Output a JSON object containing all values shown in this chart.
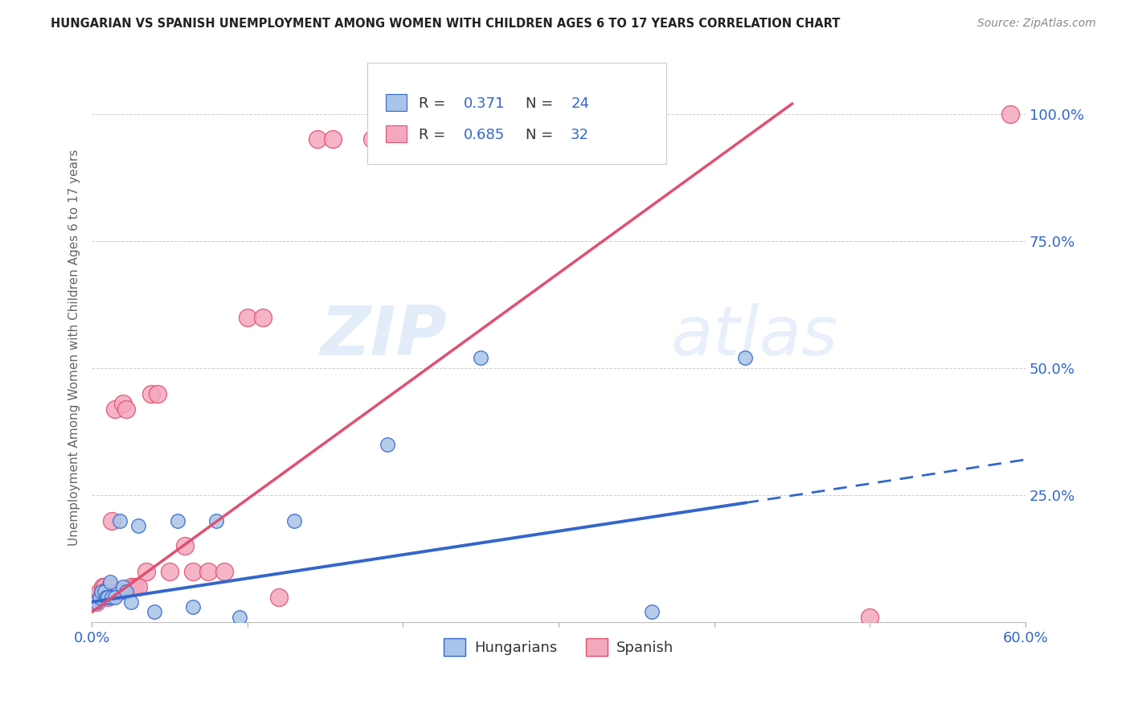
{
  "title": "HUNGARIAN VS SPANISH UNEMPLOYMENT AMONG WOMEN WITH CHILDREN AGES 6 TO 17 YEARS CORRELATION CHART",
  "source": "Source: ZipAtlas.com",
  "ylabel": "Unemployment Among Women with Children Ages 6 to 17 years",
  "xlim": [
    0.0,
    0.6
  ],
  "ylim": [
    0.0,
    1.08
  ],
  "xticks": [
    0.0,
    0.1,
    0.2,
    0.3,
    0.4,
    0.5,
    0.6
  ],
  "xticklabels": [
    "0.0%",
    "",
    "",
    "",
    "",
    "",
    "60.0%"
  ],
  "yticks_right": [
    0.0,
    0.25,
    0.5,
    0.75,
    1.0
  ],
  "yticklabels_right": [
    "",
    "25.0%",
    "50.0%",
    "75.0%",
    "100.0%"
  ],
  "R_hungarian": 0.371,
  "N_hungarian": 24,
  "R_spanish": 0.685,
  "N_spanish": 32,
  "color_hungarian": "#a8c4e8",
  "color_spanish": "#f4a8be",
  "color_hungarian_line": "#3366cc",
  "color_spanish_line": "#e05070",
  "watermark_zip": "ZIP",
  "watermark_atlas": "atlas",
  "hun_line_x0": 0.0,
  "hun_line_y0": 0.04,
  "hun_line_x1": 0.42,
  "hun_line_y1": 0.235,
  "hun_line_xdash_end": 0.6,
  "hun_line_ydash_end": 0.32,
  "spa_line_x0": 0.0,
  "spa_line_y0": 0.02,
  "spa_line_x1": 0.45,
  "spa_line_y1": 1.02,
  "hungarian_x": [
    0.003,
    0.005,
    0.006,
    0.008,
    0.009,
    0.01,
    0.012,
    0.013,
    0.015,
    0.018,
    0.02,
    0.022,
    0.025,
    0.03,
    0.04,
    0.055,
    0.065,
    0.08,
    0.095,
    0.13,
    0.19,
    0.25,
    0.36,
    0.42
  ],
  "hungarian_y": [
    0.04,
    0.05,
    0.06,
    0.06,
    0.05,
    0.05,
    0.08,
    0.05,
    0.05,
    0.2,
    0.07,
    0.06,
    0.04,
    0.19,
    0.02,
    0.2,
    0.03,
    0.2,
    0.01,
    0.2,
    0.35,
    0.52,
    0.02,
    0.52
  ],
  "spanish_x": [
    0.003,
    0.004,
    0.005,
    0.007,
    0.008,
    0.009,
    0.01,
    0.012,
    0.013,
    0.015,
    0.017,
    0.02,
    0.022,
    0.025,
    0.028,
    0.03,
    0.035,
    0.038,
    0.042,
    0.05,
    0.06,
    0.065,
    0.075,
    0.085,
    0.1,
    0.11,
    0.12,
    0.145,
    0.155,
    0.18,
    0.5,
    0.59
  ],
  "spanish_y": [
    0.04,
    0.05,
    0.06,
    0.07,
    0.07,
    0.06,
    0.05,
    0.07,
    0.2,
    0.42,
    0.06,
    0.43,
    0.42,
    0.07,
    0.07,
    0.07,
    0.1,
    0.45,
    0.45,
    0.1,
    0.15,
    0.1,
    0.1,
    0.1,
    0.6,
    0.6,
    0.05,
    0.95,
    0.95,
    0.95,
    0.01,
    1.0
  ],
  "hun_scatter_size": 160,
  "spa_scatter_size": 250,
  "background_color": "#ffffff",
  "grid_color": "#cccccc"
}
